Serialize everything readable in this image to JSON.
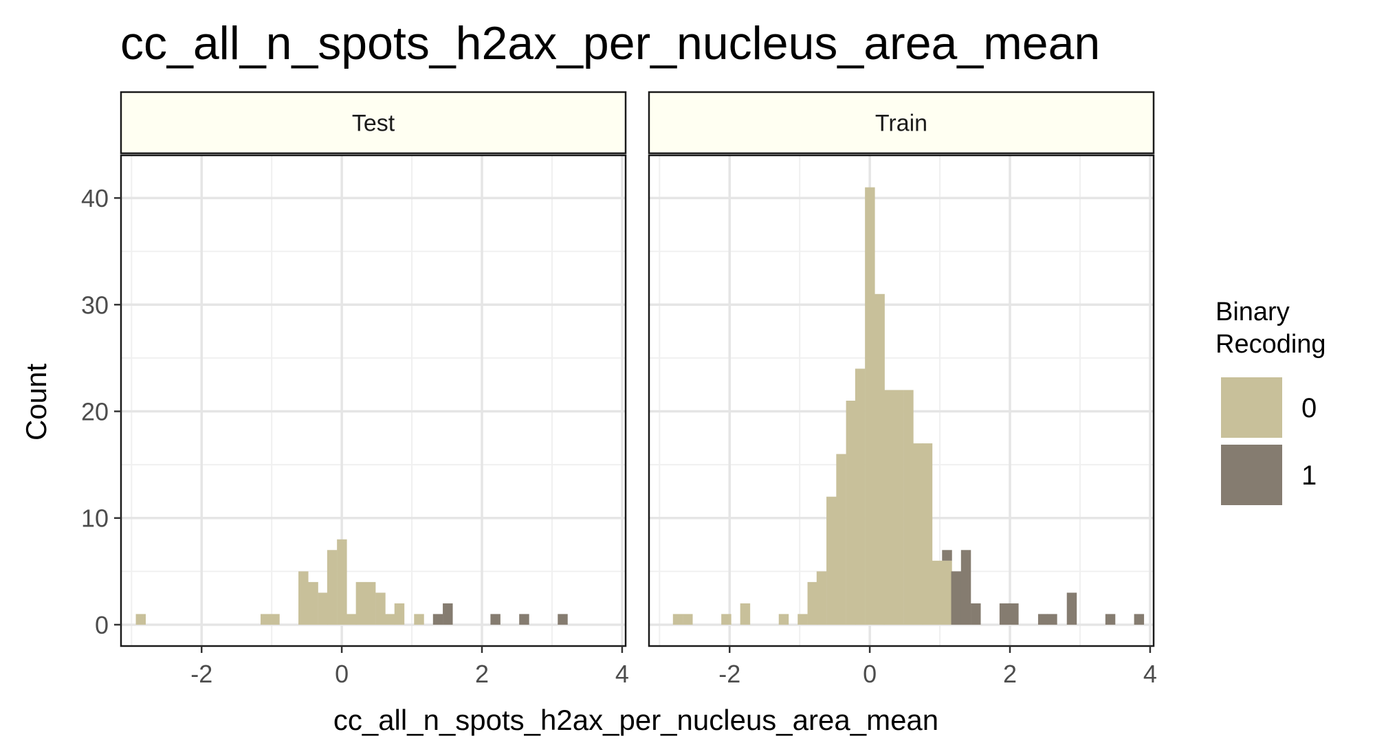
{
  "colors": {
    "class0": "#c8c09a",
    "class1": "#857c70",
    "strip": "#fffff2",
    "grid_major": "#e5e5e5",
    "grid_minor": "#f0f0f0"
  },
  "chart_data": {
    "type": "bar",
    "title": "cc_all_n_spots_h2ax_per_nucleus_area_mean",
    "xlabel": "cc_all_n_spots_h2ax_per_nucleus_area_mean",
    "ylabel": "Count",
    "xlim": [
      -3.15,
      4.05
    ],
    "ylim": [
      -2,
      44
    ],
    "x_ticks": [
      -2,
      0,
      2,
      4
    ],
    "x_tick_labels": [
      "-2",
      "0",
      "2",
      "4"
    ],
    "y_ticks": [
      0,
      10,
      20,
      30,
      40
    ],
    "y_tick_labels": [
      "0",
      "10",
      "20",
      "30",
      "40"
    ],
    "grid": true,
    "bin_width": 0.137,
    "legend": {
      "title_lines": [
        "Binary",
        "Recoding"
      ],
      "position": "right",
      "entries": [
        "0",
        "1"
      ]
    },
    "panels": [
      {
        "name": "Test",
        "series": [
          {
            "name": "0",
            "bin_centers": [
              -2.87,
              -1.09,
              -0.96,
              -0.55,
              -0.41,
              -0.27,
              -0.14,
              0.0,
              0.14,
              0.27,
              0.41,
              0.55,
              0.69,
              0.82,
              1.1
            ],
            "counts": [
              1,
              1,
              1,
              5,
              4,
              3,
              7,
              8,
              1,
              4,
              4,
              3,
              1,
              2,
              1
            ]
          },
          {
            "name": "1",
            "bin_centers": [
              1.37,
              1.51,
              2.19,
              2.6,
              3.15
            ],
            "counts": [
              1,
              2,
              1,
              1,
              1
            ]
          }
        ]
      },
      {
        "name": "Train",
        "series": [
          {
            "name": "0",
            "bin_centers": [
              -2.74,
              -2.6,
              -2.05,
              -1.78,
              -1.23,
              -0.96,
              -0.82,
              -0.69,
              -0.55,
              -0.41,
              -0.27,
              -0.14,
              0.0,
              0.14,
              0.27,
              0.41,
              0.55,
              0.69,
              0.82,
              0.96,
              1.1
            ],
            "counts": [
              1,
              1,
              1,
              2,
              1,
              1,
              4,
              5,
              12,
              16,
              21,
              24,
              41,
              31,
              22,
              22,
              22,
              17,
              17,
              6,
              6
            ]
          },
          {
            "name": "1",
            "bin_centers": [
              1.1,
              1.23,
              1.37,
              1.51,
              1.92,
              2.05,
              2.47,
              2.6,
              2.88,
              3.43,
              3.84
            ],
            "counts": [
              1,
              5,
              7,
              2,
              2,
              2,
              1,
              1,
              3,
              1,
              1
            ]
          }
        ]
      }
    ]
  }
}
